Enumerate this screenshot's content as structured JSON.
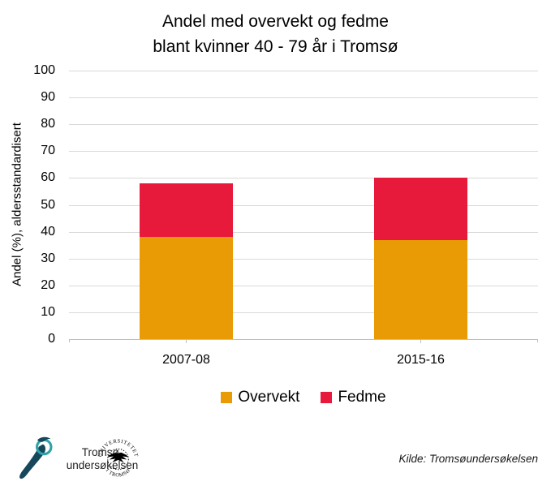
{
  "title": {
    "line1": "Andel med overvekt og fedme",
    "line2": "blant kvinner 40 - 79 år i Tromsø"
  },
  "chart_data": {
    "type": "bar",
    "stacked": true,
    "title": "Andel med overvekt og fedme blant kvinner 40 - 79 år i Tromsø",
    "categories": [
      "2007-08",
      "2015-16"
    ],
    "series": [
      {
        "name": "Overvekt",
        "color": "#E89B05",
        "values": [
          38,
          37
        ]
      },
      {
        "name": "Fedme",
        "color": "#E81A3C",
        "values": [
          20,
          23
        ]
      }
    ],
    "ylabel": "Andel (%), aldersstandardisert",
    "xlabel": "",
    "ylim": [
      0,
      100
    ],
    "yticks": [
      0,
      10,
      20,
      30,
      40,
      50,
      60,
      70,
      80,
      90,
      100
    ],
    "grid": true,
    "legend_position": "bottom"
  },
  "footer": {
    "logo": {
      "line1": "Tromsø-",
      "line2": "undersøkelsen"
    },
    "seal": {
      "top": "UNIVERSITETET",
      "bottom": "I TROMSØ"
    },
    "source": "Kilde: Tromsøundersøkelsen"
  },
  "palette": {
    "overvekt": "#E89B05",
    "fedme": "#E81A3C",
    "gridline": "#D9D9D9",
    "axis": "#BFBFBF",
    "logo_dark": "#16475B",
    "logo_teal": "#2EA2A8"
  }
}
